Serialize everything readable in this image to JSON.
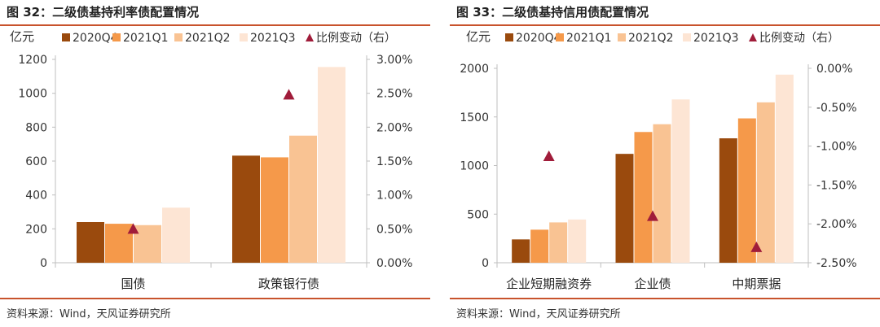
{
  "charts": [
    {
      "title": "图 32：二级债基持利率债配置情况",
      "source": "资料来源：Wind，天风证券研究所"
    },
    {
      "title": "图 33：二级债基持信用债配置情况",
      "source": "资料来源：Wind，天风证券研究所"
    }
  ],
  "colors": {
    "2020Q4": "#9a4a0d",
    "2021Q1": "#f5994a",
    "2021Q2": "#f9c393",
    "2021Q3": "#fde5d4",
    "marker": "#a01c3a",
    "rule": "#c8532c"
  },
  "chart_data": [
    {
      "type": "bar",
      "title": "",
      "ylabel": "亿元",
      "ylim": [
        0,
        1200
      ],
      "yticks": [
        "0",
        "200",
        "400",
        "600",
        "800",
        "1000",
        "1200"
      ],
      "y2lim": [
        0,
        3.0
      ],
      "y2ticks": [
        "0.00%",
        "0.50%",
        "1.00%",
        "1.50%",
        "2.00%",
        "2.50%",
        "3.00%"
      ],
      "categories": [
        "国债",
        "政策银行债"
      ],
      "series": [
        {
          "name": "2020Q4",
          "values": [
            240,
            632
          ]
        },
        {
          "name": "2021Q1",
          "values": [
            230,
            622
          ]
        },
        {
          "name": "2021Q2",
          "values": [
            222,
            750
          ]
        },
        {
          "name": "2021Q3",
          "values": [
            325,
            1155
          ]
        }
      ],
      "marker_series": {
        "name": "比例变动（右）",
        "values": [
          0.5,
          2.48
        ]
      },
      "legend_position": "top",
      "grid": false
    },
    {
      "type": "bar",
      "title": "",
      "ylabel": "亿元",
      "ylim": [
        0,
        2000
      ],
      "yticks": [
        "0",
        "500",
        "1000",
        "1500",
        "2000"
      ],
      "y2lim": [
        -2.5,
        0
      ],
      "y2ticks": [
        "-2.50%",
        "-2.00%",
        "-1.50%",
        "-1.00%",
        "-0.50%",
        "0.00%"
      ],
      "categories": [
        "企业短期融资券",
        "企业债",
        "中期票据"
      ],
      "series": [
        {
          "name": "2020Q4",
          "values": [
            240,
            1120,
            1280
          ]
        },
        {
          "name": "2021Q1",
          "values": [
            340,
            1345,
            1485
          ]
        },
        {
          "name": "2021Q2",
          "values": [
            415,
            1425,
            1650
          ]
        },
        {
          "name": "2021Q3",
          "values": [
            445,
            1680,
            1935
          ]
        }
      ],
      "marker_series": {
        "name": "比例变动（右）",
        "values": [
          -1.13,
          -1.9,
          -2.3
        ]
      },
      "legend_position": "top",
      "grid": false
    }
  ]
}
